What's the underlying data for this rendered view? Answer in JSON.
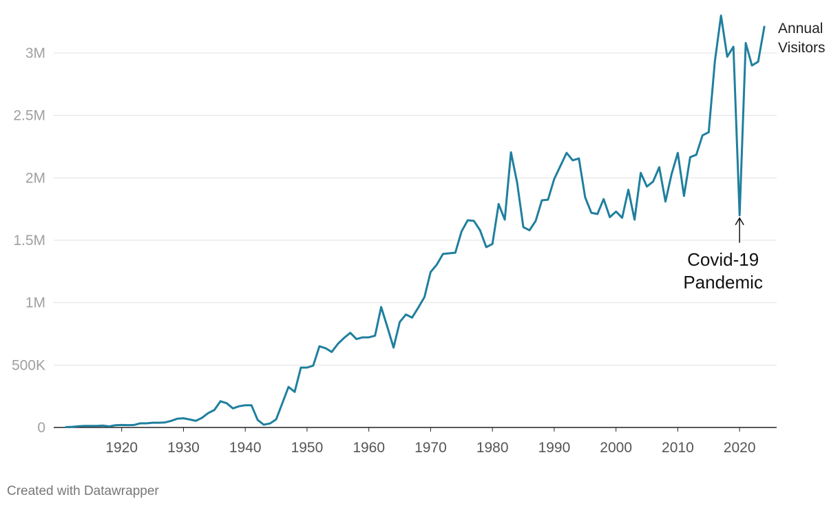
{
  "footer": {
    "credit": "Created with Datawrapper"
  },
  "colors": {
    "line": "#1f7f9e",
    "grid": "#e0e0e0",
    "baseline": "#222222",
    "annotation": "#111111"
  },
  "chart_data": {
    "type": "line",
    "title": "",
    "xlabel": "",
    "ylabel": "",
    "xlim": [
      1909,
      2026
    ],
    "ylim": [
      0,
      3300000
    ],
    "grid": true,
    "y_ticks": [
      0,
      500000,
      1000000,
      1500000,
      2000000,
      2500000,
      3000000
    ],
    "y_tick_labels": [
      "0",
      "500K",
      "1M",
      "1.5M",
      "2M",
      "2.5M",
      "3M"
    ],
    "x_ticks": [
      1920,
      1930,
      1940,
      1950,
      1960,
      1970,
      1980,
      1990,
      2000,
      2010,
      2020
    ],
    "x_tick_labels": [
      "1920",
      "1930",
      "1940",
      "1950",
      "1960",
      "1970",
      "1980",
      "1990",
      "2000",
      "2010",
      "2020"
    ],
    "series": [
      {
        "name": "Annual Visitors",
        "name_lines": [
          "Annual",
          "Visitors"
        ],
        "x": [
          1911,
          1912,
          1913,
          1914,
          1915,
          1916,
          1917,
          1918,
          1919,
          1920,
          1921,
          1922,
          1923,
          1924,
          1925,
          1926,
          1927,
          1928,
          1929,
          1930,
          1931,
          1932,
          1933,
          1934,
          1935,
          1936,
          1937,
          1938,
          1939,
          1940,
          1941,
          1942,
          1943,
          1944,
          1945,
          1946,
          1947,
          1948,
          1949,
          1950,
          1951,
          1952,
          1953,
          1954,
          1955,
          1956,
          1957,
          1958,
          1959,
          1960,
          1961,
          1962,
          1963,
          1964,
          1965,
          1966,
          1967,
          1968,
          1969,
          1970,
          1971,
          1972,
          1973,
          1974,
          1975,
          1976,
          1977,
          1978,
          1979,
          1980,
          1981,
          1982,
          1983,
          1984,
          1985,
          1986,
          1987,
          1988,
          1989,
          1990,
          1991,
          1992,
          1993,
          1994,
          1995,
          1996,
          1997,
          1998,
          1999,
          2000,
          2001,
          2002,
          2003,
          2004,
          2005,
          2006,
          2007,
          2008,
          2009,
          2010,
          2011,
          2012,
          2013,
          2014,
          2015,
          2016,
          2017,
          2018,
          2019,
          2020,
          2021,
          2022,
          2023,
          2024
        ],
        "values": [
          3000,
          5000,
          10000,
          12000,
          12000,
          12000,
          15000,
          8000,
          18000,
          20000,
          19000,
          20000,
          33000,
          33000,
          38000,
          38000,
          40000,
          53000,
          70000,
          74000,
          64000,
          53000,
          77000,
          115000,
          140000,
          210000,
          194000,
          153000,
          170000,
          178000,
          178000,
          60000,
          22000,
          32000,
          65000,
          195000,
          325000,
          285000,
          480000,
          480000,
          495000,
          650000,
          635000,
          605000,
          670000,
          718000,
          758000,
          708000,
          722000,
          722000,
          735000,
          965000,
          805000,
          640000,
          845000,
          905000,
          880000,
          960000,
          1045000,
          1245000,
          1305000,
          1390000,
          1395000,
          1400000,
          1570000,
          1660000,
          1655000,
          1580000,
          1445000,
          1470000,
          1790000,
          1665000,
          2205000,
          1960000,
          1605000,
          1580000,
          1655000,
          1820000,
          1825000,
          1990000,
          2095000,
          2200000,
          2140000,
          2155000,
          1845000,
          1720000,
          1710000,
          1830000,
          1685000,
          1730000,
          1680000,
          1905000,
          1665000,
          2040000,
          1930000,
          1970000,
          2085000,
          1810000,
          2030000,
          2200000,
          1855000,
          2165000,
          2185000,
          2340000,
          2365000,
          2935000,
          3300000,
          2970000,
          3050000,
          1700000,
          3080000,
          2900000,
          2930000,
          3210000
        ]
      }
    ],
    "annotations": [
      {
        "text_lines": [
          "Covid-19",
          "Pandemic"
        ],
        "x": 2020,
        "y": 1700000
      }
    ]
  }
}
